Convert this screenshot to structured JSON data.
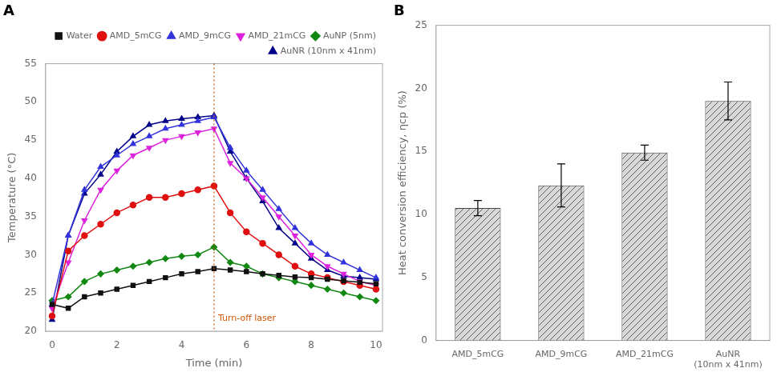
{
  "chart_data": [
    {
      "type": "line",
      "title": "A",
      "x": [
        0,
        0.5,
        1,
        1.5,
        2,
        2.5,
        3,
        3.5,
        4,
        4.5,
        5,
        5.5,
        6,
        6.5,
        7,
        7.5,
        8,
        8.5,
        9,
        9.5,
        10
      ],
      "series": [
        {
          "name": "Water",
          "color": "#111111",
          "marker": "square",
          "values": [
            23.5,
            23.0,
            24.5,
            25.0,
            25.5,
            26.0,
            26.5,
            27.0,
            27.5,
            27.8,
            28.2,
            28.0,
            27.8,
            27.5,
            27.3,
            27.1,
            27.0,
            26.8,
            26.6,
            26.4,
            26.2
          ]
        },
        {
          "name": "AMD_5mCG",
          "color": "#e01010",
          "marker": "circle",
          "values": [
            22.0,
            30.5,
            32.5,
            34.0,
            35.5,
            36.5,
            37.5,
            37.5,
            38.0,
            38.5,
            39.0,
            35.5,
            33.0,
            31.5,
            30.0,
            28.5,
            27.5,
            27.0,
            26.5,
            26.0,
            25.5
          ]
        },
        {
          "name": "AMD_9mCG",
          "color": "#3333dd",
          "marker": "triangle_up",
          "values": [
            23.5,
            32.5,
            38.5,
            41.5,
            43.0,
            44.5,
            45.5,
            46.5,
            47.0,
            47.5,
            48.0,
            44.0,
            41.0,
            38.5,
            36.0,
            33.5,
            31.5,
            30.0,
            29.0,
            28.0,
            27.0
          ]
        },
        {
          "name": "AMD_21mCG",
          "color": "#dd22dd",
          "marker": "triangle_down",
          "values": [
            23.0,
            29.0,
            34.5,
            38.5,
            41.0,
            43.0,
            44.0,
            45.0,
            45.5,
            46.0,
            46.5,
            42.0,
            40.0,
            37.5,
            35.0,
            32.5,
            30.0,
            28.5,
            27.5,
            26.5,
            26.0
          ]
        },
        {
          "name": "AuNP (5nm)",
          "color": "#118811",
          "marker": "diamond",
          "values": [
            24.0,
            24.5,
            26.5,
            27.5,
            28.0,
            28.5,
            29.0,
            29.5,
            29.8,
            30.0,
            31.0,
            29.0,
            28.5,
            27.5,
            27.0,
            26.5,
            26.0,
            25.5,
            25.0,
            24.5,
            24.0
          ]
        },
        {
          "name": "AuNR (10nm x 41nm)",
          "color": "#000088",
          "marker": "triangle_up",
          "values": [
            21.5,
            32.5,
            38.0,
            40.5,
            43.5,
            45.5,
            47.0,
            47.5,
            47.8,
            48.0,
            48.2,
            43.5,
            40.0,
            37.0,
            33.5,
            31.5,
            29.5,
            28.0,
            27.2,
            27.0,
            26.8
          ]
        }
      ],
      "xlim": [
        -0.2,
        10.2
      ],
      "ylim": [
        20,
        55
      ],
      "xticks": [
        0,
        2,
        4,
        6,
        8,
        10
      ],
      "yticks": [
        20,
        25,
        30,
        35,
        40,
        45,
        50,
        55
      ],
      "xlabel": "Time (min)",
      "ylabel": "Temperature (°C)",
      "annotations": [
        {
          "x": 5,
          "text": "Turn-off laser",
          "color": "#cc5500"
        }
      ],
      "legend": "top",
      "grid": false
    },
    {
      "type": "bar",
      "title": "B",
      "categories": [
        "AMD_5mCG",
        "AMD_9mCG",
        "AMD_21mCG",
        "AuNR\n(10nm x 41nm)"
      ],
      "values": [
        10.5,
        12.3,
        14.9,
        19.0
      ],
      "errors": [
        0.6,
        1.7,
        0.6,
        1.5
      ],
      "color": "#d8d8d8",
      "ylim": [
        0,
        25
      ],
      "yticks": [
        0,
        5,
        10,
        15,
        20,
        25
      ],
      "ylabel": "Heat conversion efficiency, ηcp (%)",
      "grid": false
    }
  ]
}
